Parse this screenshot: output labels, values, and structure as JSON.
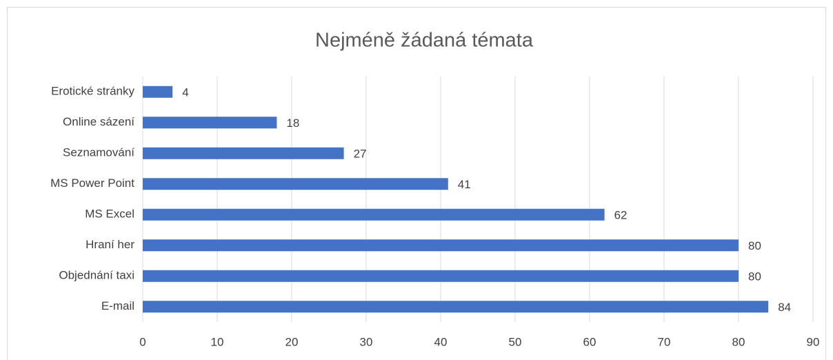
{
  "chart_data": {
    "type": "bar",
    "orientation": "horizontal",
    "title": "Nejméně žádaná témata",
    "categories": [
      "Erotické stránky",
      "Online sázení",
      "Seznamování",
      "MS Power Point",
      "MS Excel",
      "Hraní her",
      "Objednání taxi",
      "E-mail"
    ],
    "values": [
      4,
      18,
      27,
      41,
      62,
      80,
      80,
      84
    ],
    "color": "#4472c4",
    "xlim": [
      0,
      90
    ],
    "xticks": [
      0,
      10,
      20,
      30,
      40,
      50,
      60,
      70,
      80,
      90
    ],
    "grid": true
  }
}
